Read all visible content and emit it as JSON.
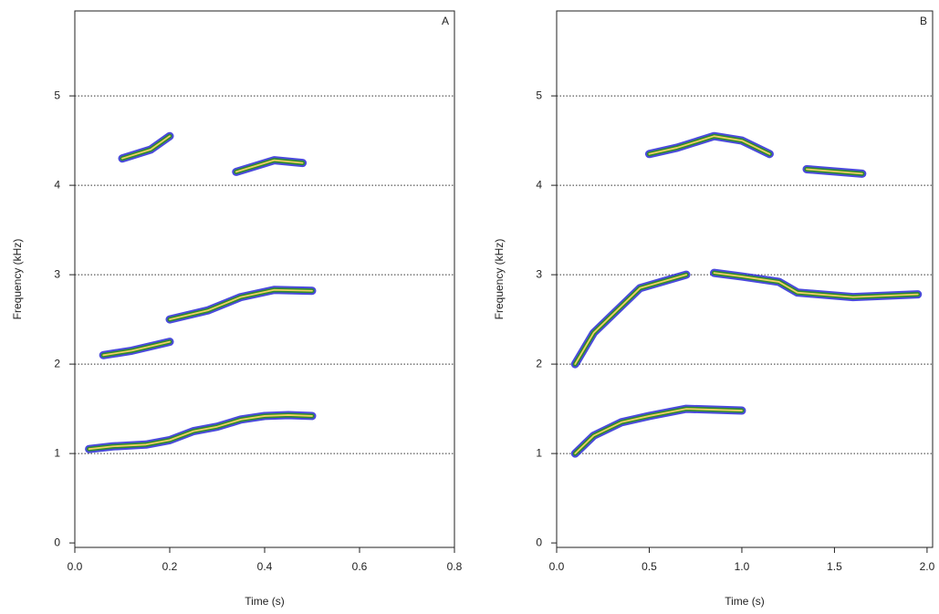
{
  "chart_data": [
    {
      "type": "contour",
      "panel_label": "A",
      "xlabel": "Time (s)",
      "ylabel": "Frequency (kHz)",
      "xlim": [
        0,
        0.8
      ],
      "ylim": [
        -0.05,
        5.95
      ],
      "xticks": [
        {
          "value": 0,
          "label": "0.0"
        },
        {
          "value": 0.2,
          "label": "0.2"
        },
        {
          "value": 0.4,
          "label": "0.4"
        },
        {
          "value": 0.6,
          "label": "0.6"
        },
        {
          "value": 0.8,
          "label": "0.8"
        }
      ],
      "yticks": [
        0,
        1,
        2,
        3,
        4,
        5
      ],
      "hlines": [
        1,
        2,
        3,
        4,
        5
      ],
      "series": [
        {
          "color": "#2e8b2e",
          "x": [
            0.03,
            0.08,
            0.15,
            0.2,
            0.25,
            0.3,
            0.35,
            0.4,
            0.45,
            0.5
          ],
          "values": [
            1.05,
            1.08,
            1.1,
            1.15,
            1.25,
            1.3,
            1.38,
            1.42,
            1.43,
            1.42
          ]
        },
        {
          "color": "#2e8b2e",
          "x": [
            0.06,
            0.12,
            0.2,
            null,
            0.2,
            0.28,
            0.35,
            0.42,
            0.5
          ],
          "values": [
            2.1,
            2.15,
            2.25,
            null,
            2.5,
            2.6,
            2.75,
            2.83,
            2.82
          ]
        },
        {
          "color": "#2e8b2e",
          "x": [
            0.1,
            0.16,
            0.2,
            null,
            0.34,
            0.42,
            0.48
          ],
          "values": [
            4.3,
            4.4,
            4.55,
            null,
            4.15,
            4.28,
            4.25
          ]
        }
      ]
    },
    {
      "type": "contour",
      "panel_label": "B",
      "xlabel": "Time (s)",
      "ylabel": "Frequency (kHz)",
      "xlim": [
        0,
        2.03
      ],
      "ylim": [
        -0.05,
        5.95
      ],
      "xticks": [
        {
          "value": 0,
          "label": "0.0"
        },
        {
          "value": 0.5,
          "label": "0.5"
        },
        {
          "value": 1,
          "label": "1.0"
        },
        {
          "value": 1.5,
          "label": "1.5"
        },
        {
          "value": 2,
          "label": "2.0"
        }
      ],
      "yticks": [
        0,
        1,
        2,
        3,
        4,
        5
      ],
      "hlines": [
        1,
        2,
        3,
        4,
        5
      ],
      "series": [
        {
          "color": "#2e8b2e",
          "x": [
            0.1,
            0.2,
            0.35,
            0.5,
            0.7,
            1.0
          ],
          "values": [
            1.0,
            1.2,
            1.35,
            1.42,
            1.5,
            1.48
          ]
        },
        {
          "color": "#2e8b2e",
          "x": [
            0.1,
            0.2,
            0.3,
            0.45,
            0.7,
            null,
            0.85,
            1.0,
            1.2,
            1.3,
            1.6,
            1.95
          ],
          "values": [
            2.0,
            2.35,
            2.55,
            2.85,
            3.0,
            null,
            3.02,
            2.98,
            2.92,
            2.8,
            2.75,
            2.78
          ]
        },
        {
          "color": "#2e8b2e",
          "x": [
            0.5,
            0.65,
            0.85,
            1.0,
            1.15,
            null,
            1.35,
            1.65
          ],
          "values": [
            4.35,
            4.42,
            4.55,
            4.5,
            4.35,
            null,
            4.18,
            4.13
          ]
        }
      ]
    }
  ]
}
